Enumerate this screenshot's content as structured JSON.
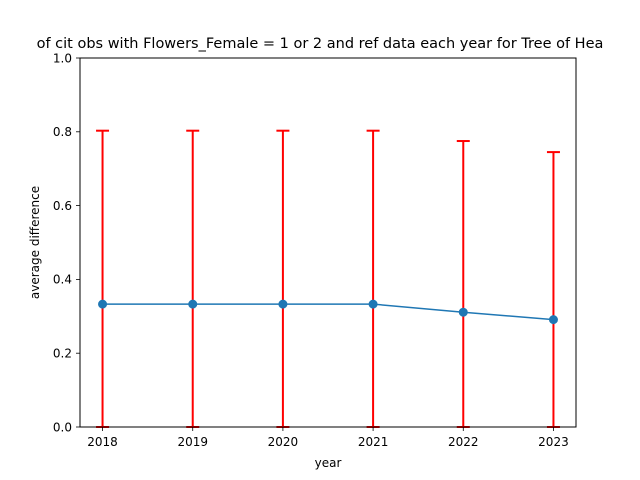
{
  "chart_data": {
    "type": "line",
    "title": "of cit obs with Flowers_Female = 1 or 2 and ref data each year for Tree of Hea",
    "xlabel": "year",
    "ylabel": "average difference",
    "x": [
      2018,
      2019,
      2020,
      2021,
      2022,
      2023
    ],
    "x_tick_labels": [
      "2018",
      "2019",
      "2020",
      "2021",
      "2022",
      "2023"
    ],
    "ylim": [
      0.0,
      1.0
    ],
    "y_ticks": [
      0.0,
      0.2,
      0.4,
      0.6,
      0.8,
      1.0
    ],
    "y_tick_labels": [
      "0.0",
      "0.2",
      "0.4",
      "0.6",
      "0.8",
      "1.0"
    ],
    "grid": false,
    "series": [
      {
        "values": [
          0.333,
          0.333,
          0.333,
          0.333,
          0.311,
          0.291
        ],
        "error_low": [
          0.0,
          0.0,
          0.0,
          0.0,
          0.0,
          0.0
        ],
        "error_high": [
          0.803,
          0.803,
          0.803,
          0.803,
          0.775,
          0.745
        ],
        "color": "#1f77b4",
        "error_color": "#ff0000"
      }
    ]
  }
}
